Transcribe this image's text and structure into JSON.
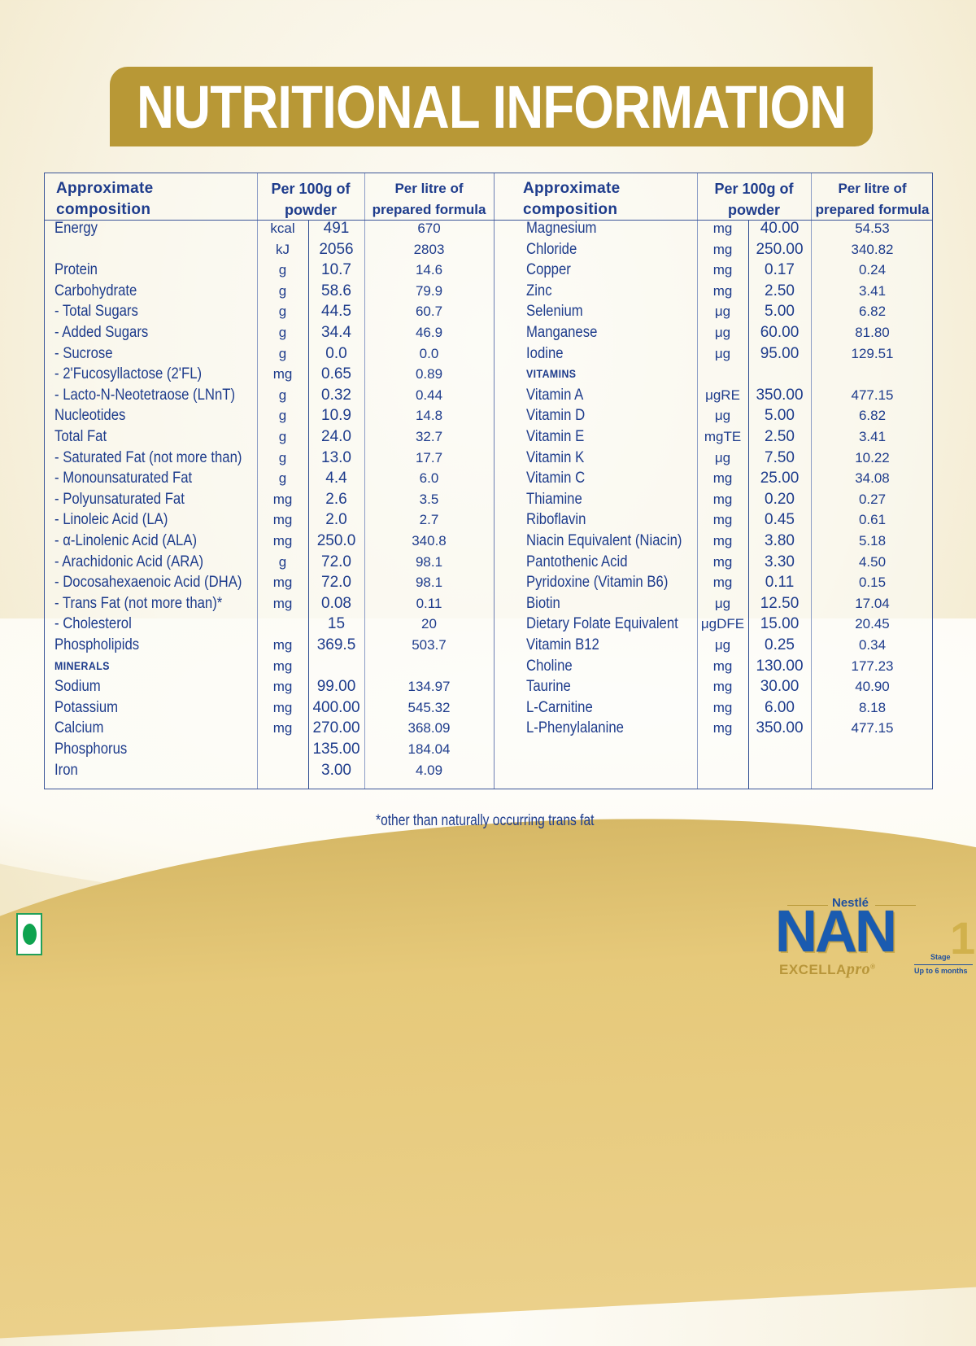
{
  "banner": {
    "title": "NUTRITIONAL INFORMATION"
  },
  "colors": {
    "banner_gold": "#b89836",
    "text_blue": "#1e3c8c",
    "veg_green": "#0ea34f"
  },
  "table_headers": {
    "composition": [
      "Approximate",
      "composition"
    ],
    "per_100g": [
      "Per 100g of",
      "powder"
    ],
    "per_litre": [
      "Per litre of",
      "prepared formula"
    ]
  },
  "left_rows": [
    {
      "name": "Energy",
      "unit": "kcal",
      "per_100g": "491",
      "per_litre": "670"
    },
    {
      "name": "",
      "unit": "kJ",
      "per_100g": "2056",
      "per_litre": "2803"
    },
    {
      "name": "Protein",
      "unit": "g",
      "per_100g": "10.7",
      "per_litre": "14.6"
    },
    {
      "name": "Carbohydrate",
      "unit": "g",
      "per_100g": "58.6",
      "per_litre": "79.9"
    },
    {
      "name": "- Total Sugars",
      "unit": "g",
      "per_100g": "44.5",
      "per_litre": "60.7"
    },
    {
      "name": "- Added Sugars",
      "unit": "g",
      "per_100g": "34.4",
      "per_litre": "46.9"
    },
    {
      "name": "- Sucrose",
      "unit": "g",
      "per_100g": "0.0",
      "per_litre": "0.0"
    },
    {
      "name": "- 2'Fucosyllactose (2'FL)",
      "unit": "mg",
      "per_100g": "0.65",
      "per_litre": "0.89"
    },
    {
      "name": "- Lacto-N-Neotetraose (LNnT)",
      "unit": "g",
      "per_100g": "0.32",
      "per_litre": "0.44"
    },
    {
      "name": "Nucleotides",
      "unit": "g",
      "per_100g": "10.9",
      "per_litre": "14.8"
    },
    {
      "name": "Total Fat",
      "unit": "g",
      "per_100g": "24.0",
      "per_litre": "32.7"
    },
    {
      "name": "- Saturated Fat (not more than)",
      "unit": "g",
      "per_100g": "13.0",
      "per_litre": "17.7"
    },
    {
      "name": "- Monounsaturated Fat",
      "unit": "g",
      "per_100g": "4.4",
      "per_litre": "6.0"
    },
    {
      "name": "- Polyunsaturated Fat",
      "unit": "mg",
      "per_100g": "2.6",
      "per_litre": "3.5"
    },
    {
      "name": "- Linoleic Acid (LA)",
      "unit": "mg",
      "per_100g": "2.0",
      "per_litre": "2.7"
    },
    {
      "name": "- α-Linolenic Acid (ALA)",
      "unit": "mg",
      "per_100g": "250.0",
      "per_litre": "340.8"
    },
    {
      "name": "- Arachidonic Acid (ARA)",
      "unit": "g",
      "per_100g": "72.0",
      "per_litre": "98.1"
    },
    {
      "name": "- Docosahexaenoic Acid (DHA)",
      "unit": "mg",
      "per_100g": "72.0",
      "per_litre": "98.1"
    },
    {
      "name": "- Trans Fat (not more than)*",
      "unit": "mg",
      "per_100g": "0.08",
      "per_litre": "0.11"
    },
    {
      "name": "- Cholesterol",
      "unit": "",
      "per_100g": "15",
      "per_litre": "20"
    },
    {
      "name": "Phospholipids",
      "unit": "mg",
      "per_100g": "369.5",
      "per_litre": "503.7"
    },
    {
      "name": "MINERALS",
      "unit": "mg",
      "per_100g": "",
      "per_litre": "",
      "section": true
    },
    {
      "name": "Sodium",
      "unit": "mg",
      "per_100g": "99.00",
      "per_litre": "134.97"
    },
    {
      "name": "Potassium",
      "unit": "mg",
      "per_100g": "400.00",
      "per_litre": "545.32"
    },
    {
      "name": "Calcium",
      "unit": "mg",
      "per_100g": "270.00",
      "per_litre": "368.09"
    },
    {
      "name": "Phosphorus",
      "unit": "",
      "per_100g": "135.00",
      "per_litre": "184.04"
    },
    {
      "name": "Iron",
      "unit": "",
      "per_100g": "3.00",
      "per_litre": "4.09"
    }
  ],
  "right_rows": [
    {
      "name": "Magnesium",
      "unit": "mg",
      "per_100g": "40.00",
      "per_litre": "54.53"
    },
    {
      "name": "Chloride",
      "unit": "mg",
      "per_100g": "250.00",
      "per_litre": "340.82"
    },
    {
      "name": "Copper",
      "unit": "mg",
      "per_100g": "0.17",
      "per_litre": "0.24"
    },
    {
      "name": "Zinc",
      "unit": "mg",
      "per_100g": "2.50",
      "per_litre": "3.41"
    },
    {
      "name": "Selenium",
      "unit": "μg",
      "per_100g": "5.00",
      "per_litre": "6.82"
    },
    {
      "name": "Manganese",
      "unit": "μg",
      "per_100g": "60.00",
      "per_litre": "81.80"
    },
    {
      "name": "Iodine",
      "unit": "μg",
      "per_100g": "95.00",
      "per_litre": "129.51"
    },
    {
      "name": "VITAMINS",
      "unit": "",
      "per_100g": "",
      "per_litre": "",
      "section": true
    },
    {
      "name": "Vitamin A",
      "unit": "μgRE",
      "per_100g": "350.00",
      "per_litre": "477.15"
    },
    {
      "name": "Vitamin D",
      "unit": "μg",
      "per_100g": "5.00",
      "per_litre": "6.82"
    },
    {
      "name": "Vitamin E",
      "unit": "mgTE",
      "per_100g": "2.50",
      "per_litre": "3.41"
    },
    {
      "name": "Vitamin K",
      "unit": "μg",
      "per_100g": "7.50",
      "per_litre": "10.22"
    },
    {
      "name": "Vitamin C",
      "unit": "mg",
      "per_100g": "25.00",
      "per_litre": "34.08"
    },
    {
      "name": "Thiamine",
      "unit": "mg",
      "per_100g": "0.20",
      "per_litre": "0.27"
    },
    {
      "name": "Riboflavin",
      "unit": "mg",
      "per_100g": "0.45",
      "per_litre": "0.61"
    },
    {
      "name": "Niacin Equivalent (Niacin)",
      "unit": "mg",
      "per_100g": "3.80",
      "per_litre": "5.18"
    },
    {
      "name": "Pantothenic Acid",
      "unit": "mg",
      "per_100g": "3.30",
      "per_litre": "4.50"
    },
    {
      "name": "Pyridoxine (Vitamin B6)",
      "unit": "mg",
      "per_100g": "0.11",
      "per_litre": "0.15"
    },
    {
      "name": "Biotin",
      "unit": "μg",
      "per_100g": "12.50",
      "per_litre": "17.04"
    },
    {
      "name": "Dietary Folate Equivalent",
      "unit": "μgDFE",
      "per_100g": "15.00",
      "per_litre": "20.45"
    },
    {
      "name": "Vitamin B12",
      "unit": "μg",
      "per_100g": "0.25",
      "per_litre": "0.34"
    },
    {
      "name": "Choline",
      "unit": "mg",
      "per_100g": "130.00",
      "per_litre": "177.23"
    },
    {
      "name": "Taurine",
      "unit": "mg",
      "per_100g": "30.00",
      "per_litre": "40.90"
    },
    {
      "name": "L-Carnitine",
      "unit": "mg",
      "per_100g": "6.00",
      "per_litre": "8.18"
    },
    {
      "name": "L-Phenylalanine",
      "unit": "mg",
      "per_100g": "350.00",
      "per_litre": "477.15"
    }
  ],
  "footnote": "*other than naturally occurring trans fat",
  "brand": {
    "maker": "Nestlé",
    "name": "NAN",
    "sub_name_a": "EXCELLA",
    "sub_name_b": "pro",
    "registered": "®",
    "stage_number": "1",
    "stage_label": "Stage",
    "stage_age": "Up to 6 months"
  },
  "veg_mark": {
    "icon": "vegetarian-mark-icon"
  }
}
